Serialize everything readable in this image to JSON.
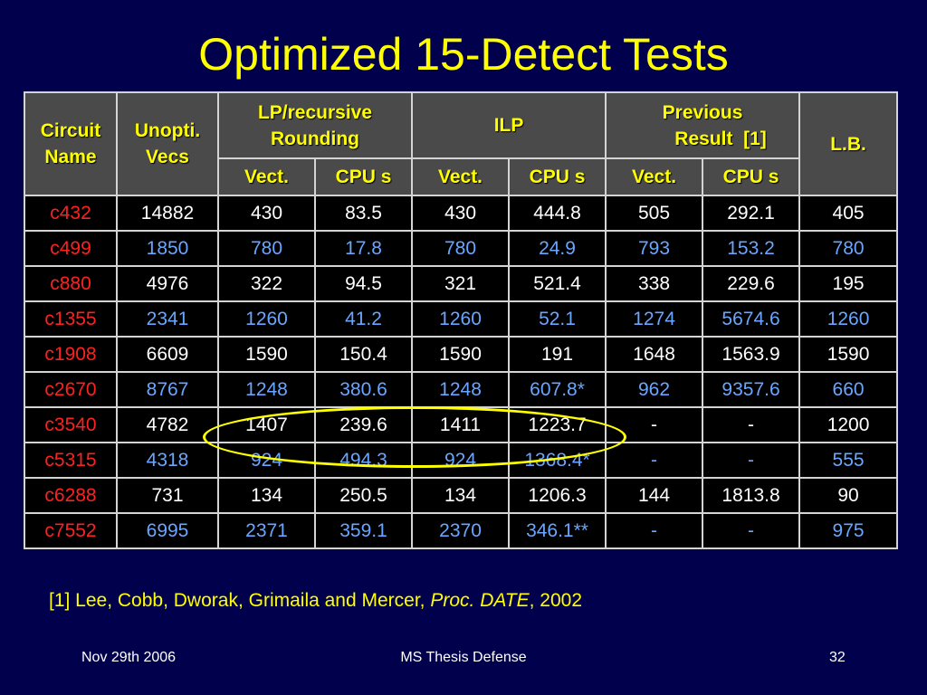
{
  "title": "Optimized 15-Detect Tests",
  "table": {
    "headers": {
      "circuit_name": [
        "Circuit",
        "Name"
      ],
      "unopti_vecs": [
        "Unopti.",
        "Vecs"
      ],
      "lp_group": [
        "LP/recursive",
        "Rounding"
      ],
      "ilp_group": "ILP",
      "prev_group": [
        "Previous",
        "Result  [1]"
      ],
      "lb": "L.B.",
      "sub": {
        "lp_vect": "Vect.",
        "lp_cpu": "CPU s",
        "ilp_vect": "Vect.",
        "ilp_cpu": "CPU s",
        "prev_vect": "Vect.",
        "prev_cpu": "CPU s"
      }
    },
    "rows": [
      {
        "name": "c432",
        "unopt": "14882",
        "lp_vect": "430",
        "lp_cpu": "83.5",
        "ilp_vect": "430",
        "ilp_cpu": "444.8",
        "prev_vect": "505",
        "prev_cpu": "292.1",
        "lb": "405"
      },
      {
        "name": "c499",
        "unopt": "1850",
        "lp_vect": "780",
        "lp_cpu": "17.8",
        "ilp_vect": "780",
        "ilp_cpu": "24.9",
        "prev_vect": "793",
        "prev_cpu": "153.2",
        "lb": "780"
      },
      {
        "name": "c880",
        "unopt": "4976",
        "lp_vect": "322",
        "lp_cpu": "94.5",
        "ilp_vect": "321",
        "ilp_cpu": "521.4",
        "prev_vect": "338",
        "prev_cpu": "229.6",
        "lb": "195"
      },
      {
        "name": "c1355",
        "unopt": "2341",
        "lp_vect": "1260",
        "lp_cpu": "41.2",
        "ilp_vect": "1260",
        "ilp_cpu": "52.1",
        "prev_vect": "1274",
        "prev_cpu": "5674.6",
        "lb": "1260"
      },
      {
        "name": "c1908",
        "unopt": "6609",
        "lp_vect": "1590",
        "lp_cpu": "150.4",
        "ilp_vect": "1590",
        "ilp_cpu": "191",
        "prev_vect": "1648",
        "prev_cpu": "1563.9",
        "lb": "1590"
      },
      {
        "name": "c2670",
        "unopt": "8767",
        "lp_vect": "1248",
        "lp_cpu": "380.6",
        "ilp_vect": "1248",
        "ilp_cpu": "607.8*",
        "prev_vect": "962",
        "prev_cpu": "9357.6",
        "lb": "660"
      },
      {
        "name": "c3540",
        "unopt": "4782",
        "lp_vect": "1407",
        "lp_cpu": "239.6",
        "ilp_vect": "1411",
        "ilp_cpu": "1223.7",
        "prev_vect": "-",
        "prev_cpu": "-",
        "lb": "1200"
      },
      {
        "name": "c5315",
        "unopt": "4318",
        "lp_vect": "924",
        "lp_cpu": "494.3",
        "ilp_vect": "924",
        "ilp_cpu": "1368.4*",
        "prev_vect": "-",
        "prev_cpu": "-",
        "lb": "555"
      },
      {
        "name": "c6288",
        "unopt": "731",
        "lp_vect": "134",
        "lp_cpu": "250.5",
        "ilp_vect": "134",
        "ilp_cpu": "1206.3",
        "prev_vect": "144",
        "prev_cpu": "1813.8",
        "lb": "90"
      },
      {
        "name": "c7552",
        "unopt": "6995",
        "lp_vect": "2371",
        "lp_cpu": "359.1",
        "ilp_vect": "2370",
        "ilp_cpu": "346.1**",
        "prev_vect": "-",
        "prev_cpu": "-",
        "lb": "975"
      }
    ]
  },
  "footnote": {
    "part1": "[1] Lee, Cobb, Dworak, Grimaila and Mercer, ",
    "italic": "Proc. DATE",
    "part2": ", 2002"
  },
  "footer": {
    "date": "Nov 29th 2006",
    "center": "MS Thesis Defense",
    "page_number": "32"
  },
  "colors": {
    "background": "#00004c",
    "title": "#ffff00",
    "header_bg": "#4a4a4a",
    "circuit_name": "#ff2020",
    "blue_row_text": "#6aa6ff",
    "highlight_ellipse": "#ffff00"
  }
}
